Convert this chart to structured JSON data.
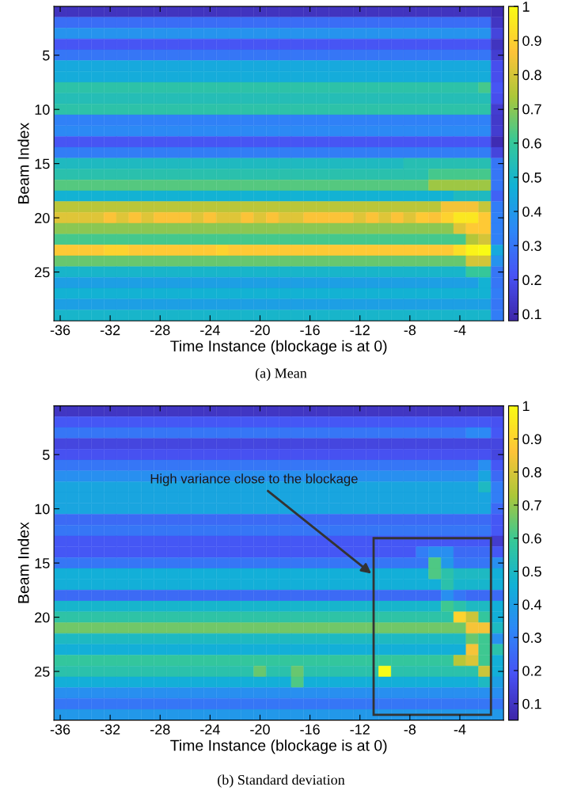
{
  "chart_data": [
    {
      "type": "heatmap",
      "title": "(a) Mean",
      "xlabel": "Time Instance (blockage is at 0)",
      "ylabel": "Beam Index",
      "x": [
        -36,
        -35,
        -34,
        -33,
        -32,
        -31,
        -30,
        -29,
        -28,
        -27,
        -26,
        -25,
        -24,
        -23,
        -22,
        -21,
        -20,
        -19,
        -18,
        -17,
        -16,
        -15,
        -14,
        -13,
        -12,
        -11,
        -10,
        -9,
        -8,
        -7,
        -6,
        -5,
        -4,
        -3,
        -2,
        -1
      ],
      "y": [
        1,
        2,
        3,
        4,
        5,
        6,
        7,
        8,
        9,
        10,
        11,
        12,
        13,
        14,
        15,
        16,
        17,
        18,
        19,
        20,
        21,
        22,
        23,
        24,
        25,
        26,
        27,
        28,
        29
      ],
      "xlim": [
        -36.5,
        -0.5
      ],
      "ylim": [
        29.5,
        0.5
      ],
      "xticks": [
        -36,
        -32,
        -28,
        -24,
        -20,
        -16,
        -12,
        -8,
        -4
      ],
      "yticks": [
        5,
        10,
        15,
        20,
        25
      ],
      "clim": [
        0.08,
        1.0
      ],
      "cticks": [
        0.1,
        0.2,
        0.3,
        0.4,
        0.5,
        0.6,
        0.7,
        0.8,
        0.9,
        1
      ],
      "cells": [
        [
          0.12,
          0.12,
          0.12,
          0.12,
          0.12,
          0.12,
          0.12,
          0.12,
          0.12,
          0.12,
          0.12,
          0.12,
          0.12,
          0.12,
          0.12,
          0.12,
          0.12,
          0.12,
          0.12,
          0.12,
          0.12,
          0.12,
          0.12,
          0.12,
          0.12,
          0.12,
          0.12,
          0.12,
          0.12,
          0.12,
          0.12,
          0.12,
          0.12,
          0.12,
          0.12,
          0.1
        ],
        [
          0.28,
          0.28,
          0.28,
          0.28,
          0.28,
          0.28,
          0.28,
          0.28,
          0.28,
          0.28,
          0.28,
          0.28,
          0.28,
          0.28,
          0.28,
          0.28,
          0.28,
          0.28,
          0.28,
          0.28,
          0.28,
          0.28,
          0.28,
          0.28,
          0.28,
          0.28,
          0.28,
          0.28,
          0.28,
          0.28,
          0.28,
          0.28,
          0.28,
          0.28,
          0.28,
          0.13
        ],
        [
          0.38,
          0.38,
          0.38,
          0.38,
          0.38,
          0.38,
          0.38,
          0.38,
          0.38,
          0.38,
          0.38,
          0.38,
          0.38,
          0.38,
          0.38,
          0.38,
          0.38,
          0.38,
          0.38,
          0.38,
          0.38,
          0.38,
          0.38,
          0.38,
          0.38,
          0.38,
          0.38,
          0.38,
          0.38,
          0.38,
          0.38,
          0.38,
          0.38,
          0.38,
          0.38,
          0.17
        ],
        [
          0.22,
          0.22,
          0.22,
          0.22,
          0.22,
          0.22,
          0.22,
          0.22,
          0.22,
          0.22,
          0.22,
          0.22,
          0.22,
          0.22,
          0.22,
          0.22,
          0.22,
          0.22,
          0.22,
          0.22,
          0.22,
          0.22,
          0.22,
          0.22,
          0.22,
          0.22,
          0.22,
          0.22,
          0.22,
          0.22,
          0.22,
          0.22,
          0.22,
          0.22,
          0.22,
          0.12
        ],
        [
          0.3,
          0.3,
          0.3,
          0.3,
          0.3,
          0.3,
          0.3,
          0.3,
          0.3,
          0.3,
          0.3,
          0.3,
          0.3,
          0.3,
          0.3,
          0.3,
          0.3,
          0.3,
          0.3,
          0.3,
          0.3,
          0.3,
          0.3,
          0.3,
          0.3,
          0.3,
          0.3,
          0.3,
          0.3,
          0.3,
          0.3,
          0.3,
          0.3,
          0.3,
          0.3,
          0.15
        ],
        [
          0.45,
          0.45,
          0.45,
          0.45,
          0.45,
          0.45,
          0.45,
          0.45,
          0.45,
          0.45,
          0.45,
          0.45,
          0.45,
          0.45,
          0.45,
          0.45,
          0.45,
          0.45,
          0.45,
          0.45,
          0.45,
          0.45,
          0.45,
          0.45,
          0.45,
          0.45,
          0.45,
          0.45,
          0.45,
          0.45,
          0.45,
          0.45,
          0.45,
          0.45,
          0.45,
          0.2
        ],
        [
          0.46,
          0.46,
          0.46,
          0.46,
          0.46,
          0.46,
          0.46,
          0.46,
          0.46,
          0.46,
          0.46,
          0.46,
          0.46,
          0.46,
          0.46,
          0.46,
          0.46,
          0.46,
          0.46,
          0.46,
          0.46,
          0.46,
          0.46,
          0.46,
          0.46,
          0.46,
          0.46,
          0.46,
          0.46,
          0.46,
          0.46,
          0.46,
          0.46,
          0.46,
          0.46,
          0.2
        ],
        [
          0.57,
          0.57,
          0.57,
          0.57,
          0.57,
          0.57,
          0.57,
          0.57,
          0.57,
          0.57,
          0.57,
          0.57,
          0.57,
          0.57,
          0.57,
          0.57,
          0.57,
          0.57,
          0.57,
          0.57,
          0.57,
          0.57,
          0.57,
          0.57,
          0.57,
          0.57,
          0.57,
          0.57,
          0.57,
          0.57,
          0.57,
          0.57,
          0.57,
          0.57,
          0.62,
          0.22
        ],
        [
          0.54,
          0.54,
          0.54,
          0.54,
          0.54,
          0.54,
          0.54,
          0.54,
          0.54,
          0.54,
          0.54,
          0.54,
          0.54,
          0.54,
          0.54,
          0.54,
          0.54,
          0.54,
          0.54,
          0.54,
          0.54,
          0.54,
          0.54,
          0.54,
          0.54,
          0.54,
          0.54,
          0.54,
          0.54,
          0.54,
          0.54,
          0.54,
          0.54,
          0.54,
          0.54,
          0.2
        ],
        [
          0.57,
          0.57,
          0.57,
          0.57,
          0.57,
          0.57,
          0.57,
          0.57,
          0.57,
          0.57,
          0.57,
          0.57,
          0.57,
          0.57,
          0.57,
          0.57,
          0.57,
          0.57,
          0.57,
          0.57,
          0.57,
          0.57,
          0.57,
          0.57,
          0.57,
          0.57,
          0.57,
          0.57,
          0.57,
          0.57,
          0.57,
          0.57,
          0.57,
          0.57,
          0.57,
          0.15
        ],
        [
          0.33,
          0.33,
          0.33,
          0.33,
          0.33,
          0.33,
          0.33,
          0.33,
          0.33,
          0.33,
          0.33,
          0.33,
          0.33,
          0.33,
          0.33,
          0.33,
          0.33,
          0.33,
          0.33,
          0.33,
          0.33,
          0.33,
          0.33,
          0.33,
          0.33,
          0.33,
          0.33,
          0.33,
          0.33,
          0.33,
          0.33,
          0.33,
          0.33,
          0.33,
          0.33,
          0.14
        ],
        [
          0.35,
          0.35,
          0.35,
          0.35,
          0.35,
          0.35,
          0.35,
          0.35,
          0.35,
          0.35,
          0.35,
          0.35,
          0.35,
          0.35,
          0.35,
          0.35,
          0.35,
          0.35,
          0.35,
          0.35,
          0.35,
          0.35,
          0.35,
          0.35,
          0.35,
          0.35,
          0.35,
          0.35,
          0.35,
          0.35,
          0.35,
          0.35,
          0.35,
          0.35,
          0.35,
          0.15
        ],
        [
          0.22,
          0.22,
          0.22,
          0.22,
          0.22,
          0.22,
          0.22,
          0.22,
          0.22,
          0.22,
          0.22,
          0.22,
          0.22,
          0.22,
          0.22,
          0.22,
          0.22,
          0.22,
          0.22,
          0.22,
          0.22,
          0.22,
          0.22,
          0.22,
          0.22,
          0.22,
          0.22,
          0.22,
          0.22,
          0.22,
          0.22,
          0.22,
          0.22,
          0.22,
          0.22,
          0.1
        ],
        [
          0.32,
          0.32,
          0.32,
          0.32,
          0.32,
          0.32,
          0.32,
          0.32,
          0.32,
          0.32,
          0.32,
          0.32,
          0.32,
          0.32,
          0.32,
          0.32,
          0.32,
          0.32,
          0.32,
          0.32,
          0.32,
          0.32,
          0.32,
          0.32,
          0.32,
          0.32,
          0.32,
          0.32,
          0.32,
          0.32,
          0.32,
          0.32,
          0.32,
          0.32,
          0.32,
          0.17
        ],
        [
          0.52,
          0.52,
          0.52,
          0.52,
          0.52,
          0.52,
          0.52,
          0.52,
          0.52,
          0.52,
          0.52,
          0.52,
          0.52,
          0.52,
          0.52,
          0.52,
          0.52,
          0.52,
          0.52,
          0.52,
          0.52,
          0.52,
          0.52,
          0.52,
          0.52,
          0.52,
          0.52,
          0.52,
          0.55,
          0.55,
          0.55,
          0.55,
          0.55,
          0.55,
          0.55,
          0.3
        ],
        [
          0.56,
          0.56,
          0.56,
          0.56,
          0.56,
          0.56,
          0.56,
          0.56,
          0.56,
          0.56,
          0.56,
          0.56,
          0.56,
          0.56,
          0.56,
          0.56,
          0.56,
          0.56,
          0.56,
          0.56,
          0.56,
          0.56,
          0.56,
          0.56,
          0.56,
          0.56,
          0.56,
          0.56,
          0.56,
          0.56,
          0.62,
          0.62,
          0.62,
          0.62,
          0.62,
          0.3
        ],
        [
          0.64,
          0.64,
          0.64,
          0.64,
          0.64,
          0.64,
          0.64,
          0.64,
          0.64,
          0.64,
          0.64,
          0.64,
          0.64,
          0.64,
          0.64,
          0.64,
          0.64,
          0.64,
          0.64,
          0.64,
          0.64,
          0.64,
          0.64,
          0.64,
          0.64,
          0.64,
          0.64,
          0.64,
          0.64,
          0.64,
          0.72,
          0.72,
          0.72,
          0.72,
          0.72,
          0.3
        ],
        [
          0.48,
          0.48,
          0.48,
          0.48,
          0.48,
          0.48,
          0.48,
          0.48,
          0.48,
          0.48,
          0.48,
          0.48,
          0.48,
          0.48,
          0.48,
          0.48,
          0.48,
          0.48,
          0.48,
          0.48,
          0.48,
          0.48,
          0.48,
          0.48,
          0.48,
          0.48,
          0.48,
          0.48,
          0.48,
          0.48,
          0.48,
          0.48,
          0.52,
          0.52,
          0.52,
          0.25
        ],
        [
          0.76,
          0.76,
          0.76,
          0.76,
          0.76,
          0.76,
          0.76,
          0.76,
          0.76,
          0.76,
          0.76,
          0.76,
          0.76,
          0.76,
          0.76,
          0.76,
          0.76,
          0.76,
          0.76,
          0.76,
          0.76,
          0.76,
          0.76,
          0.76,
          0.76,
          0.76,
          0.76,
          0.76,
          0.76,
          0.76,
          0.76,
          0.85,
          0.85,
          0.85,
          0.78,
          0.32
        ],
        [
          0.82,
          0.82,
          0.82,
          0.82,
          0.86,
          0.82,
          0.86,
          0.82,
          0.86,
          0.86,
          0.86,
          0.82,
          0.86,
          0.82,
          0.82,
          0.86,
          0.82,
          0.86,
          0.82,
          0.82,
          0.86,
          0.86,
          0.86,
          0.86,
          0.82,
          0.86,
          0.82,
          0.86,
          0.82,
          0.88,
          0.86,
          0.9,
          0.95,
          0.95,
          0.88,
          0.33
        ],
        [
          0.7,
          0.7,
          0.7,
          0.7,
          0.7,
          0.7,
          0.7,
          0.7,
          0.7,
          0.7,
          0.7,
          0.7,
          0.7,
          0.7,
          0.7,
          0.7,
          0.7,
          0.7,
          0.7,
          0.7,
          0.7,
          0.7,
          0.7,
          0.7,
          0.7,
          0.7,
          0.7,
          0.7,
          0.7,
          0.7,
          0.7,
          0.7,
          0.82,
          0.88,
          0.88,
          0.33
        ],
        [
          0.62,
          0.62,
          0.62,
          0.62,
          0.62,
          0.62,
          0.62,
          0.62,
          0.62,
          0.62,
          0.62,
          0.62,
          0.62,
          0.62,
          0.62,
          0.62,
          0.62,
          0.62,
          0.62,
          0.62,
          0.62,
          0.62,
          0.62,
          0.62,
          0.62,
          0.62,
          0.62,
          0.62,
          0.62,
          0.62,
          0.62,
          0.62,
          0.62,
          0.75,
          0.8,
          0.33
        ],
        [
          0.88,
          0.88,
          0.88,
          0.88,
          0.9,
          0.9,
          0.88,
          0.88,
          0.88,
          0.88,
          0.88,
          0.88,
          0.88,
          0.9,
          0.88,
          0.88,
          0.88,
          0.88,
          0.88,
          0.88,
          0.88,
          0.88,
          0.88,
          0.88,
          0.88,
          0.88,
          0.88,
          0.88,
          0.88,
          0.88,
          0.88,
          0.88,
          0.93,
          0.98,
          1.0,
          0.45
        ],
        [
          0.66,
          0.66,
          0.66,
          0.66,
          0.66,
          0.66,
          0.66,
          0.66,
          0.66,
          0.66,
          0.66,
          0.66,
          0.66,
          0.66,
          0.66,
          0.66,
          0.66,
          0.66,
          0.66,
          0.66,
          0.66,
          0.66,
          0.66,
          0.66,
          0.66,
          0.66,
          0.66,
          0.66,
          0.66,
          0.66,
          0.66,
          0.66,
          0.66,
          0.8,
          0.8,
          0.38
        ],
        [
          0.5,
          0.5,
          0.5,
          0.5,
          0.5,
          0.5,
          0.5,
          0.5,
          0.5,
          0.5,
          0.5,
          0.5,
          0.5,
          0.5,
          0.5,
          0.5,
          0.5,
          0.5,
          0.5,
          0.5,
          0.5,
          0.5,
          0.5,
          0.5,
          0.5,
          0.5,
          0.5,
          0.5,
          0.5,
          0.5,
          0.5,
          0.5,
          0.5,
          0.6,
          0.6,
          0.3
        ],
        [
          0.42,
          0.42,
          0.42,
          0.42,
          0.42,
          0.42,
          0.42,
          0.42,
          0.42,
          0.42,
          0.42,
          0.42,
          0.42,
          0.42,
          0.42,
          0.42,
          0.42,
          0.42,
          0.42,
          0.42,
          0.42,
          0.42,
          0.42,
          0.42,
          0.42,
          0.42,
          0.42,
          0.42,
          0.42,
          0.42,
          0.42,
          0.42,
          0.42,
          0.42,
          0.48,
          0.3
        ],
        [
          0.48,
          0.48,
          0.48,
          0.48,
          0.48,
          0.48,
          0.48,
          0.48,
          0.48,
          0.48,
          0.48,
          0.48,
          0.48,
          0.48,
          0.48,
          0.48,
          0.48,
          0.48,
          0.48,
          0.48,
          0.48,
          0.48,
          0.48,
          0.48,
          0.48,
          0.48,
          0.48,
          0.48,
          0.48,
          0.48,
          0.48,
          0.48,
          0.48,
          0.48,
          0.48,
          0.32
        ],
        [
          0.42,
          0.42,
          0.42,
          0.42,
          0.42,
          0.42,
          0.42,
          0.42,
          0.42,
          0.42,
          0.42,
          0.42,
          0.42,
          0.42,
          0.42,
          0.42,
          0.42,
          0.42,
          0.42,
          0.42,
          0.42,
          0.42,
          0.42,
          0.42,
          0.42,
          0.42,
          0.42,
          0.42,
          0.42,
          0.42,
          0.42,
          0.42,
          0.42,
          0.42,
          0.42,
          0.3
        ],
        [
          0.5,
          0.5,
          0.5,
          0.5,
          0.5,
          0.5,
          0.5,
          0.5,
          0.5,
          0.5,
          0.5,
          0.5,
          0.5,
          0.5,
          0.5,
          0.5,
          0.5,
          0.5,
          0.5,
          0.5,
          0.5,
          0.5,
          0.5,
          0.5,
          0.5,
          0.5,
          0.5,
          0.5,
          0.5,
          0.5,
          0.5,
          0.5,
          0.5,
          0.5,
          0.5,
          0.32
        ]
      ]
    },
    {
      "type": "heatmap",
      "title": "(b) Standard deviation",
      "xlabel": "Time Instance (blockage is at 0)",
      "ylabel": "Beam Index",
      "x": [
        -36,
        -35,
        -34,
        -33,
        -32,
        -31,
        -30,
        -29,
        -28,
        -27,
        -26,
        -25,
        -24,
        -23,
        -22,
        -21,
        -20,
        -19,
        -18,
        -17,
        -16,
        -15,
        -14,
        -13,
        -12,
        -11,
        -10,
        -9,
        -8,
        -7,
        -6,
        -5,
        -4,
        -3,
        -2,
        -1
      ],
      "y": [
        1,
        2,
        3,
        4,
        5,
        6,
        7,
        8,
        9,
        10,
        11,
        12,
        13,
        14,
        15,
        16,
        17,
        18,
        19,
        20,
        21,
        22,
        23,
        24,
        25,
        26,
        27,
        28,
        29
      ],
      "xlim": [
        -36.5,
        -0.5
      ],
      "ylim": [
        29.5,
        0.5
      ],
      "xticks": [
        -36,
        -32,
        -28,
        -24,
        -20,
        -16,
        -12,
        -8,
        -4
      ],
      "yticks": [
        5,
        10,
        15,
        20,
        25
      ],
      "clim": [
        0.05,
        1.0
      ],
      "cticks": [
        0.1,
        0.2,
        0.3,
        0.4,
        0.5,
        0.6,
        0.7,
        0.8,
        0.9,
        1
      ],
      "annotations": [
        "High variance close to the blockage"
      ],
      "cells": [
        [
          0.1,
          0.1,
          0.1,
          0.1,
          0.1,
          0.1,
          0.1,
          0.1,
          0.1,
          0.1,
          0.1,
          0.1,
          0.1,
          0.1,
          0.1,
          0.1,
          0.1,
          0.1,
          0.1,
          0.1,
          0.1,
          0.1,
          0.1,
          0.1,
          0.1,
          0.1,
          0.1,
          0.1,
          0.1,
          0.1,
          0.1,
          0.1,
          0.1,
          0.1,
          0.1,
          0.1
        ],
        [
          0.2,
          0.2,
          0.2,
          0.2,
          0.2,
          0.2,
          0.2,
          0.2,
          0.2,
          0.2,
          0.2,
          0.2,
          0.2,
          0.2,
          0.2,
          0.2,
          0.2,
          0.2,
          0.2,
          0.2,
          0.2,
          0.2,
          0.2,
          0.2,
          0.2,
          0.2,
          0.2,
          0.2,
          0.2,
          0.2,
          0.2,
          0.2,
          0.2,
          0.2,
          0.2,
          0.18
        ],
        [
          0.28,
          0.28,
          0.28,
          0.28,
          0.28,
          0.28,
          0.28,
          0.28,
          0.28,
          0.28,
          0.28,
          0.28,
          0.28,
          0.28,
          0.28,
          0.28,
          0.28,
          0.28,
          0.28,
          0.28,
          0.28,
          0.28,
          0.28,
          0.28,
          0.28,
          0.28,
          0.28,
          0.28,
          0.28,
          0.28,
          0.28,
          0.28,
          0.28,
          0.33,
          0.33,
          0.2
        ],
        [
          0.15,
          0.15,
          0.15,
          0.15,
          0.15,
          0.15,
          0.15,
          0.15,
          0.15,
          0.15,
          0.15,
          0.15,
          0.15,
          0.15,
          0.15,
          0.15,
          0.15,
          0.15,
          0.15,
          0.15,
          0.15,
          0.15,
          0.15,
          0.15,
          0.15,
          0.15,
          0.15,
          0.15,
          0.15,
          0.15,
          0.15,
          0.15,
          0.15,
          0.15,
          0.15,
          0.15
        ],
        [
          0.18,
          0.18,
          0.18,
          0.18,
          0.18,
          0.18,
          0.18,
          0.18,
          0.18,
          0.18,
          0.18,
          0.18,
          0.18,
          0.18,
          0.18,
          0.18,
          0.18,
          0.18,
          0.18,
          0.18,
          0.18,
          0.18,
          0.18,
          0.18,
          0.18,
          0.18,
          0.18,
          0.18,
          0.18,
          0.18,
          0.18,
          0.18,
          0.18,
          0.18,
          0.18,
          0.15
        ],
        [
          0.28,
          0.28,
          0.28,
          0.28,
          0.28,
          0.28,
          0.28,
          0.28,
          0.28,
          0.28,
          0.28,
          0.28,
          0.28,
          0.28,
          0.28,
          0.28,
          0.28,
          0.28,
          0.28,
          0.28,
          0.28,
          0.28,
          0.28,
          0.28,
          0.28,
          0.28,
          0.28,
          0.28,
          0.28,
          0.28,
          0.28,
          0.28,
          0.28,
          0.28,
          0.35,
          0.2
        ],
        [
          0.35,
          0.35,
          0.35,
          0.35,
          0.35,
          0.35,
          0.35,
          0.35,
          0.35,
          0.35,
          0.35,
          0.35,
          0.35,
          0.35,
          0.35,
          0.35,
          0.35,
          0.35,
          0.35,
          0.35,
          0.35,
          0.35,
          0.35,
          0.35,
          0.35,
          0.35,
          0.35,
          0.35,
          0.35,
          0.35,
          0.35,
          0.35,
          0.35,
          0.35,
          0.42,
          0.25
        ],
        [
          0.42,
          0.42,
          0.42,
          0.42,
          0.42,
          0.42,
          0.42,
          0.42,
          0.42,
          0.42,
          0.42,
          0.42,
          0.42,
          0.42,
          0.42,
          0.42,
          0.42,
          0.42,
          0.42,
          0.42,
          0.42,
          0.42,
          0.42,
          0.42,
          0.42,
          0.42,
          0.42,
          0.42,
          0.42,
          0.42,
          0.42,
          0.42,
          0.42,
          0.42,
          0.5,
          0.3
        ],
        [
          0.42,
          0.42,
          0.42,
          0.42,
          0.42,
          0.42,
          0.42,
          0.42,
          0.42,
          0.42,
          0.42,
          0.42,
          0.42,
          0.42,
          0.42,
          0.42,
          0.42,
          0.42,
          0.42,
          0.42,
          0.42,
          0.42,
          0.42,
          0.42,
          0.42,
          0.42,
          0.42,
          0.42,
          0.42,
          0.42,
          0.42,
          0.42,
          0.42,
          0.42,
          0.42,
          0.3
        ],
        [
          0.42,
          0.42,
          0.42,
          0.42,
          0.42,
          0.42,
          0.42,
          0.42,
          0.42,
          0.42,
          0.42,
          0.42,
          0.42,
          0.42,
          0.42,
          0.42,
          0.42,
          0.42,
          0.42,
          0.42,
          0.42,
          0.42,
          0.42,
          0.42,
          0.42,
          0.42,
          0.42,
          0.42,
          0.42,
          0.42,
          0.42,
          0.42,
          0.42,
          0.42,
          0.42,
          0.25
        ],
        [
          0.25,
          0.25,
          0.25,
          0.25,
          0.25,
          0.25,
          0.25,
          0.25,
          0.25,
          0.25,
          0.25,
          0.25,
          0.25,
          0.25,
          0.25,
          0.25,
          0.25,
          0.25,
          0.25,
          0.25,
          0.25,
          0.25,
          0.25,
          0.25,
          0.25,
          0.25,
          0.25,
          0.25,
          0.25,
          0.25,
          0.25,
          0.25,
          0.25,
          0.25,
          0.25,
          0.2
        ],
        [
          0.28,
          0.28,
          0.28,
          0.28,
          0.28,
          0.28,
          0.28,
          0.28,
          0.28,
          0.28,
          0.28,
          0.28,
          0.28,
          0.28,
          0.28,
          0.28,
          0.28,
          0.28,
          0.28,
          0.28,
          0.28,
          0.28,
          0.28,
          0.28,
          0.28,
          0.28,
          0.28,
          0.28,
          0.28,
          0.28,
          0.28,
          0.28,
          0.28,
          0.28,
          0.28,
          0.2
        ],
        [
          0.2,
          0.2,
          0.2,
          0.2,
          0.2,
          0.2,
          0.2,
          0.2,
          0.2,
          0.2,
          0.2,
          0.2,
          0.2,
          0.2,
          0.2,
          0.2,
          0.2,
          0.2,
          0.2,
          0.2,
          0.2,
          0.2,
          0.2,
          0.2,
          0.2,
          0.2,
          0.2,
          0.2,
          0.2,
          0.2,
          0.2,
          0.2,
          0.2,
          0.2,
          0.2,
          0.12
        ],
        [
          0.2,
          0.2,
          0.2,
          0.2,
          0.2,
          0.2,
          0.2,
          0.2,
          0.2,
          0.2,
          0.2,
          0.2,
          0.2,
          0.2,
          0.2,
          0.2,
          0.2,
          0.2,
          0.2,
          0.2,
          0.2,
          0.2,
          0.2,
          0.2,
          0.2,
          0.2,
          0.2,
          0.2,
          0.2,
          0.3,
          0.35,
          0.35,
          0.25,
          0.25,
          0.25,
          0.2
        ],
        [
          0.28,
          0.28,
          0.28,
          0.28,
          0.28,
          0.28,
          0.28,
          0.28,
          0.28,
          0.28,
          0.28,
          0.28,
          0.28,
          0.28,
          0.28,
          0.28,
          0.28,
          0.28,
          0.28,
          0.28,
          0.28,
          0.28,
          0.28,
          0.28,
          0.28,
          0.28,
          0.28,
          0.28,
          0.28,
          0.28,
          0.62,
          0.38,
          0.28,
          0.28,
          0.28,
          0.35
        ],
        [
          0.45,
          0.45,
          0.45,
          0.45,
          0.45,
          0.45,
          0.45,
          0.45,
          0.45,
          0.45,
          0.45,
          0.45,
          0.45,
          0.45,
          0.45,
          0.45,
          0.45,
          0.45,
          0.45,
          0.45,
          0.45,
          0.45,
          0.45,
          0.45,
          0.45,
          0.45,
          0.45,
          0.45,
          0.45,
          0.45,
          0.62,
          0.55,
          0.5,
          0.5,
          0.5,
          0.45
        ],
        [
          0.45,
          0.45,
          0.45,
          0.45,
          0.45,
          0.45,
          0.45,
          0.45,
          0.45,
          0.45,
          0.45,
          0.45,
          0.45,
          0.45,
          0.45,
          0.45,
          0.45,
          0.45,
          0.45,
          0.45,
          0.45,
          0.45,
          0.45,
          0.45,
          0.45,
          0.45,
          0.45,
          0.45,
          0.45,
          0.45,
          0.45,
          0.55,
          0.48,
          0.48,
          0.48,
          0.45
        ],
        [
          0.25,
          0.25,
          0.25,
          0.25,
          0.25,
          0.25,
          0.25,
          0.25,
          0.25,
          0.25,
          0.25,
          0.25,
          0.25,
          0.25,
          0.25,
          0.25,
          0.25,
          0.25,
          0.25,
          0.25,
          0.25,
          0.25,
          0.25,
          0.25,
          0.25,
          0.25,
          0.25,
          0.25,
          0.25,
          0.25,
          0.25,
          0.35,
          0.28,
          0.25,
          0.25,
          0.25
        ],
        [
          0.48,
          0.48,
          0.48,
          0.48,
          0.48,
          0.48,
          0.48,
          0.48,
          0.48,
          0.48,
          0.48,
          0.48,
          0.48,
          0.48,
          0.48,
          0.48,
          0.48,
          0.48,
          0.48,
          0.48,
          0.48,
          0.48,
          0.48,
          0.48,
          0.48,
          0.48,
          0.48,
          0.48,
          0.48,
          0.48,
          0.48,
          0.6,
          0.55,
          0.5,
          0.5,
          0.45
        ],
        [
          0.56,
          0.56,
          0.56,
          0.56,
          0.56,
          0.56,
          0.56,
          0.56,
          0.56,
          0.56,
          0.56,
          0.56,
          0.56,
          0.56,
          0.56,
          0.56,
          0.56,
          0.56,
          0.56,
          0.56,
          0.56,
          0.56,
          0.56,
          0.56,
          0.56,
          0.56,
          0.56,
          0.56,
          0.56,
          0.56,
          0.56,
          0.56,
          0.9,
          0.78,
          0.58,
          0.45
        ],
        [
          0.66,
          0.66,
          0.66,
          0.66,
          0.66,
          0.66,
          0.66,
          0.66,
          0.66,
          0.66,
          0.66,
          0.66,
          0.66,
          0.66,
          0.66,
          0.66,
          0.66,
          0.66,
          0.66,
          0.66,
          0.66,
          0.66,
          0.66,
          0.66,
          0.66,
          0.66,
          0.66,
          0.66,
          0.66,
          0.66,
          0.66,
          0.66,
          0.66,
          0.85,
          0.85,
          0.5
        ],
        [
          0.5,
          0.5,
          0.5,
          0.5,
          0.5,
          0.5,
          0.5,
          0.5,
          0.5,
          0.5,
          0.5,
          0.5,
          0.5,
          0.5,
          0.5,
          0.5,
          0.5,
          0.5,
          0.5,
          0.5,
          0.5,
          0.5,
          0.5,
          0.5,
          0.5,
          0.5,
          0.5,
          0.5,
          0.5,
          0.5,
          0.5,
          0.5,
          0.5,
          0.65,
          0.6,
          0.35
        ],
        [
          0.45,
          0.45,
          0.45,
          0.45,
          0.45,
          0.45,
          0.45,
          0.45,
          0.45,
          0.45,
          0.45,
          0.45,
          0.45,
          0.45,
          0.45,
          0.45,
          0.45,
          0.45,
          0.45,
          0.45,
          0.45,
          0.45,
          0.45,
          0.45,
          0.45,
          0.45,
          0.45,
          0.45,
          0.45,
          0.45,
          0.45,
          0.45,
          0.45,
          0.85,
          0.6,
          0.55
        ],
        [
          0.58,
          0.58,
          0.58,
          0.58,
          0.58,
          0.58,
          0.58,
          0.58,
          0.58,
          0.58,
          0.58,
          0.58,
          0.58,
          0.58,
          0.58,
          0.58,
          0.58,
          0.58,
          0.58,
          0.58,
          0.58,
          0.58,
          0.58,
          0.58,
          0.58,
          0.58,
          0.58,
          0.58,
          0.58,
          0.58,
          0.58,
          0.58,
          0.75,
          0.8,
          0.6,
          0.45
        ],
        [
          0.55,
          0.55,
          0.55,
          0.55,
          0.55,
          0.55,
          0.55,
          0.55,
          0.55,
          0.55,
          0.55,
          0.55,
          0.55,
          0.55,
          0.55,
          0.55,
          0.65,
          0.55,
          0.55,
          0.65,
          0.55,
          0.55,
          0.55,
          0.55,
          0.55,
          0.55,
          1.0,
          0.55,
          0.55,
          0.55,
          0.55,
          0.55,
          0.55,
          0.55,
          0.78,
          0.45
        ],
        [
          0.45,
          0.45,
          0.45,
          0.45,
          0.45,
          0.45,
          0.45,
          0.45,
          0.45,
          0.45,
          0.45,
          0.45,
          0.45,
          0.45,
          0.45,
          0.45,
          0.45,
          0.45,
          0.45,
          0.62,
          0.45,
          0.45,
          0.45,
          0.45,
          0.45,
          0.45,
          0.45,
          0.45,
          0.45,
          0.45,
          0.45,
          0.45,
          0.45,
          0.45,
          0.5,
          0.4
        ],
        [
          0.35,
          0.35,
          0.35,
          0.35,
          0.35,
          0.35,
          0.35,
          0.35,
          0.35,
          0.35,
          0.35,
          0.35,
          0.35,
          0.35,
          0.35,
          0.35,
          0.35,
          0.35,
          0.35,
          0.35,
          0.35,
          0.35,
          0.35,
          0.35,
          0.35,
          0.35,
          0.35,
          0.35,
          0.35,
          0.35,
          0.35,
          0.35,
          0.35,
          0.35,
          0.35,
          0.35
        ],
        [
          0.28,
          0.28,
          0.28,
          0.28,
          0.28,
          0.28,
          0.28,
          0.28,
          0.28,
          0.28,
          0.28,
          0.28,
          0.28,
          0.28,
          0.28,
          0.28,
          0.28,
          0.28,
          0.28,
          0.28,
          0.28,
          0.28,
          0.28,
          0.28,
          0.28,
          0.28,
          0.28,
          0.28,
          0.28,
          0.28,
          0.28,
          0.28,
          0.28,
          0.28,
          0.28,
          0.28
        ],
        [
          0.38,
          0.38,
          0.38,
          0.38,
          0.38,
          0.38,
          0.38,
          0.38,
          0.38,
          0.38,
          0.38,
          0.38,
          0.38,
          0.38,
          0.38,
          0.38,
          0.38,
          0.38,
          0.38,
          0.38,
          0.38,
          0.38,
          0.38,
          0.38,
          0.38,
          0.38,
          0.38,
          0.38,
          0.38,
          0.38,
          0.38,
          0.38,
          0.38,
          0.38,
          0.38,
          0.38
        ]
      ]
    }
  ]
}
